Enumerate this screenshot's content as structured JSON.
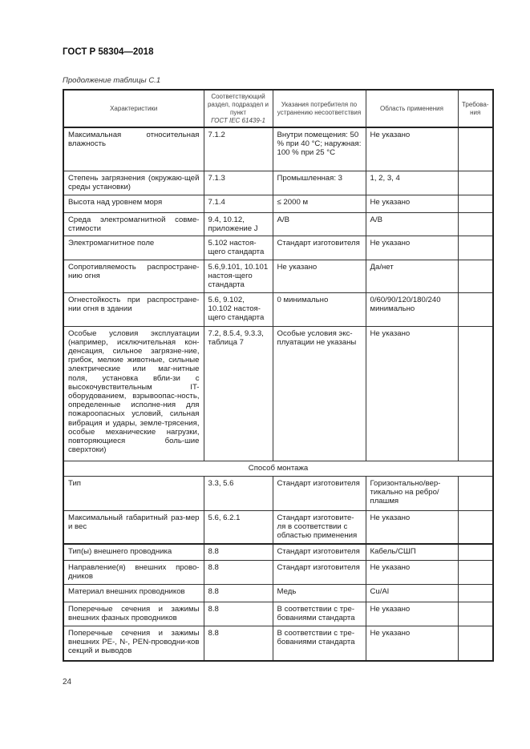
{
  "header": {
    "doc_code": "ГОСТ Р 58304—2018",
    "caption": "Продолжение таблицы С.1"
  },
  "table": {
    "columns": [
      "Характеристики",
      "Соответствующий раздел, подраздел и пункт",
      "ГОСТ IEC 61439-1",
      "Указания потребителя по устранению несоответствия",
      "Область применения",
      "Требова-ния"
    ],
    "rows": [
      [
        "Максимальная относительная влажность",
        "7.1.2",
        "Внутри помещения: 50 % при 40 °С; наружная: 100 % при 25 °С",
        "Не указано",
        ""
      ],
      [
        "Степень загрязнения (окружаю-щей среды установки)",
        "7.1.3",
        "Промышленная: 3",
        "1, 2, 3, 4",
        ""
      ],
      [
        "Высота над уровнем моря",
        "7.1.4",
        "≤ 2000 м",
        "Не указано",
        ""
      ],
      [
        "Среда электромагнитной совме-стимости",
        "9.4, 10.12, приложение J",
        "А/В",
        "А/В",
        ""
      ],
      [
        "Электромагнитное поле",
        "5.102 настоя-щего стандарта",
        "Стандарт изготовителя",
        "Не указано",
        ""
      ],
      [
        "Сопротивляемость распростране-нию огня",
        "5.6,9.101, 10.101 настоя-щего стандарта",
        "Не указано",
        "Да/нет",
        ""
      ],
      [
        "Огнестойкость при распростране-нии огня в здании",
        "5.6, 9.102, 10.102 настоя-щего стандарта",
        "0 минимально",
        "0/60/90/120/180/240 минимально",
        ""
      ],
      [
        "Особые условия эксплуатации (например, исключительная кон-денсация, сильное загрязне-ние, грибок, мелкие животные, сильные электрические или маг-нитные поля, установка вбли-зи с высокочувствительным IT-оборудованием, взрывоопас-ность, определенные исполне-ния для пожароопасных условий, сильная вибрация и удары, земле-трясения, особые механические нагрузки, повторяющиеся боль-шие сверхтоки)",
        "7.2, 8.5.4, 9.3.3, таблица 7",
        "Особые условия экс-плуатации не указаны",
        "Не указано",
        ""
      ]
    ],
    "section": "Способ монтажа",
    "rows2": [
      [
        "Тип",
        "3.3, 5.6",
        "Стандарт изготовителя",
        "Горизонтально/вер-тикально на ребро/ плашмя",
        ""
      ],
      [
        "Максимальный габаритный раз-мер и вес",
        "5.6, 6.2.1",
        "Стандарт изготовите-ля в соответствии с областью применения",
        "Не указано",
        ""
      ],
      [
        "Тип(ы) внешнего проводника",
        "8.8",
        "Стандарт изготовителя",
        "Кабель/СШП",
        ""
      ],
      [
        "Направление(я) внешних прово-дников",
        "8.8",
        "Стандарт изготовителя",
        "Не указано",
        ""
      ],
      [
        "Материал внешних проводников",
        "8.8",
        "Медь",
        "Cu/Al",
        ""
      ],
      [
        "Поперечные сечения и зажимы внешних фазных проводников",
        "8.8",
        "В соответствии с тре-бованиями стандарта",
        "Не указано",
        ""
      ],
      [
        "Поперечные сечения и зажимы внешних PE-, N-, PEN-проводни-ков секций и выводов",
        "8.8",
        "В соответствии с тре-бованиями стандарта",
        "Не указано",
        ""
      ]
    ]
  },
  "footer": {
    "page_number": "24"
  }
}
